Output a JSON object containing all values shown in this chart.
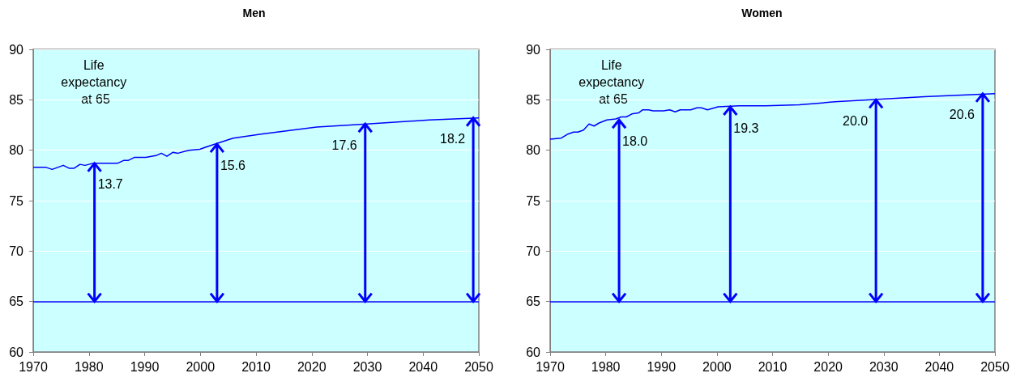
{
  "chart_data": [
    {
      "type": "line",
      "title": "Men",
      "xlim": [
        1970,
        2050
      ],
      "xticks": [
        1970,
        1980,
        1990,
        2000,
        2010,
        2020,
        2030,
        2040,
        2050
      ],
      "ylim": [
        60,
        90
      ],
      "yticks": [
        60,
        65,
        70,
        75,
        80,
        85,
        90
      ],
      "grid": "y",
      "marker": "none",
      "series": [
        {
          "color": "#0000ff",
          "x": [
            1970,
            1972.3,
            1973.4,
            1975.4,
            1976.5,
            1977.3,
            1978.4,
            1979.3,
            1980.7,
            1985.1,
            1986.3,
            1987.1,
            1988.2,
            1990.2,
            1992.2,
            1993,
            1994,
            1995.1,
            1996,
            1997.2,
            1998,
            1999.9,
            2002,
            2003.1,
            2005.9,
            2010.9,
            2020.9,
            2029.9,
            2041.1,
            2050
          ],
          "values": [
            78.3,
            78.3,
            78.1,
            78.5,
            78.2,
            78.2,
            78.6,
            78.5,
            78.7,
            78.7,
            79.0,
            79.0,
            79.3,
            79.3,
            79.5,
            79.7,
            79.4,
            79.8,
            79.7,
            79.9,
            80.0,
            80.1,
            80.5,
            80.7,
            81.2,
            81.6,
            82.3,
            82.6,
            83.0,
            83.2
          ]
        }
      ],
      "ref_lines": [
        {
          "axis": "y",
          "value": 65,
          "color": "#0000ff"
        }
      ],
      "annotations": [
        "Life expectancy at 65",
        {
          "text": "13.7",
          "x": 1981,
          "y": 78.7
        },
        {
          "text": "15.6",
          "x": 2003,
          "y": 80.6
        },
        {
          "text": "17.6",
          "x": 2029.6,
          "y": 82.6
        },
        {
          "text": "18.2",
          "x": 2049,
          "y": 83.2
        }
      ]
    },
    {
      "type": "line",
      "title": "Women",
      "xlim": [
        1970,
        2050
      ],
      "xticks": [
        1970,
        1980,
        1990,
        2000,
        2010,
        2020,
        2030,
        2040,
        2050
      ],
      "ylim": [
        60,
        90
      ],
      "yticks": [
        60,
        65,
        70,
        75,
        80,
        85,
        90
      ],
      "grid": "y",
      "marker": "none",
      "series": [
        {
          "color": "#0000ff",
          "x": [
            1970,
            1972,
            1973.2,
            1974.2,
            1975,
            1976,
            1977,
            1977.9,
            1978.8,
            1980.2,
            1981.8,
            1982.8,
            1983.7,
            1984.7,
            1985.9,
            1986.6,
            1987.7,
            1988.5,
            1990.4,
            1991.5,
            1992.5,
            1993.4,
            1995.3,
            1996.4,
            1997.2,
            1998.3,
            2000.2,
            2004,
            2008.8,
            2014.8,
            2021.2,
            2027.7,
            2037.3,
            2050
          ],
          "values": [
            81.1,
            81.2,
            81.6,
            81.8,
            81.8,
            82.0,
            82.6,
            82.4,
            82.7,
            83.0,
            83.1,
            83.3,
            83.3,
            83.6,
            83.7,
            84.0,
            84.0,
            83.9,
            83.9,
            84.0,
            83.8,
            84.0,
            84.0,
            84.2,
            84.2,
            84.0,
            84.3,
            84.4,
            84.4,
            84.5,
            84.8,
            85.0,
            85.3,
            85.6
          ]
        }
      ],
      "ref_lines": [
        {
          "axis": "y",
          "value": 65,
          "color": "#0000ff"
        }
      ],
      "annotations": [
        "Life expectancy at 65",
        {
          "text": "18.0",
          "x": 1982.4,
          "y": 83.0
        },
        {
          "text": "19.3",
          "x": 2002.4,
          "y": 84.3
        },
        {
          "text": "20.0",
          "x": 2028.6,
          "y": 85.0
        },
        {
          "text": "20.6",
          "x": 2047.8,
          "y": 85.6
        }
      ]
    }
  ]
}
